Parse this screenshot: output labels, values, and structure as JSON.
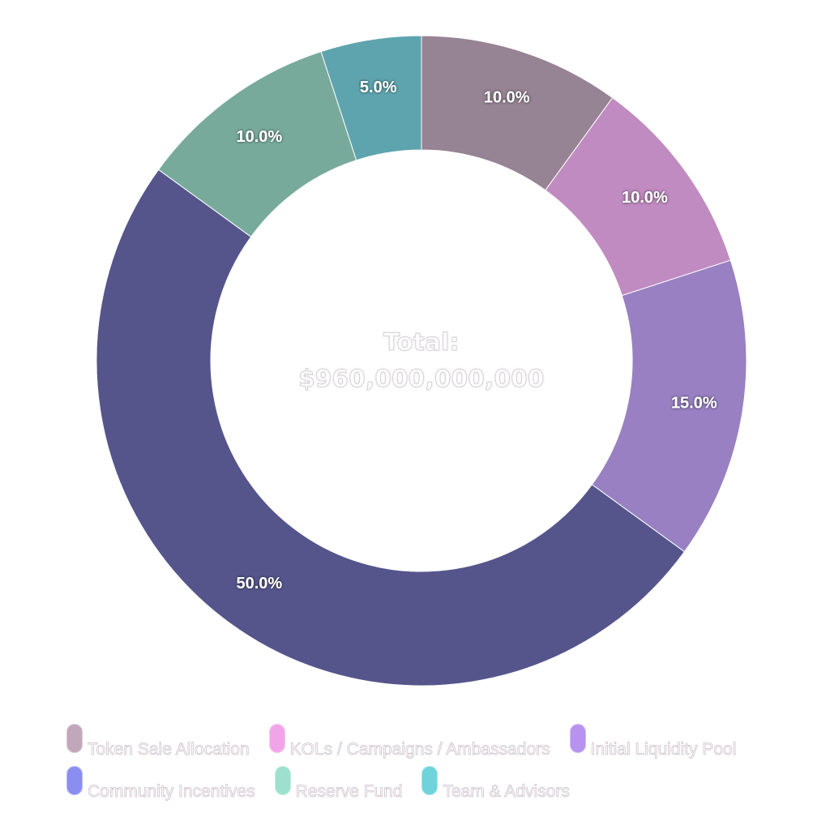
{
  "center": {
    "title": "Total:",
    "value": "$960,000,000,000"
  },
  "chart_data": {
    "type": "pie",
    "donut": true,
    "categories": [
      "Token Sale Allocation",
      "KOLs / Campaigns / Ambassadors",
      "Initial Liquidity Pool",
      "Community Incentives",
      "Reserve Fund",
      "Team & Advisors"
    ],
    "values": [
      10.0,
      10.0,
      15.0,
      50.0,
      10.0,
      5.0
    ],
    "data_labels": [
      "10.0%",
      "10.0%",
      "15.0%",
      "50.0%",
      "10.0%",
      "5.0%"
    ],
    "slice_colors": [
      "#968393",
      "#c08bc0",
      "#9880c2",
      "#55558c",
      "#78aa9c",
      "#5ea4ae"
    ],
    "legend_colors": [
      "#c1a7ba",
      "#f1a5e8",
      "#b892ef",
      "#8a8ef0",
      "#9ee0cf",
      "#6fd3db"
    ],
    "legend_position": "bottom"
  }
}
